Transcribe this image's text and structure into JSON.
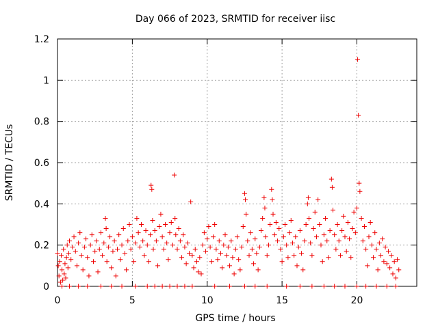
{
  "chart_data": {
    "type": "scatter",
    "title": "Day 066 of 2023, SRMTID for receiver iisc",
    "xlabel": "GPS time / hours",
    "ylabel": "SRMTID / TECUs",
    "xlim": [
      0,
      24
    ],
    "ylim": [
      0,
      1.2
    ],
    "grid": true,
    "x_ticks": [
      0,
      5,
      10,
      15,
      20
    ],
    "x_tick_labels": [
      "0",
      "5",
      "10",
      "15",
      "20"
    ],
    "y_ticks": [
      0,
      0.2,
      0.4,
      0.6,
      0.8,
      1,
      1.2
    ],
    "y_tick_labels": [
      "0",
      "0.2",
      "0.4",
      "0.6",
      "0.8",
      "1",
      "1.2"
    ],
    "marker": "+",
    "color": "#ee0000",
    "series": [
      {
        "name": "iisc",
        "points": [
          [
            0.0,
            0.16
          ],
          [
            0.05,
            0.1
          ],
          [
            0.1,
            0.05
          ],
          [
            0.15,
            0.12
          ],
          [
            0.2,
            0.02
          ],
          [
            0.25,
            0.15
          ],
          [
            0.3,
            0.08
          ],
          [
            0.35,
            0.03
          ],
          [
            0.4,
            0.18
          ],
          [
            0.45,
            0.06
          ],
          [
            0.5,
            0.11
          ],
          [
            0.55,
            0.04
          ],
          [
            0.6,
            0.14
          ],
          [
            0.65,
            0.2
          ],
          [
            0.7,
            0.09
          ],
          [
            0.75,
            0.16
          ],
          [
            0.8,
            0.22
          ],
          [
            0.9,
            0.13
          ],
          [
            1.0,
            0.19
          ],
          [
            1.1,
            0.24
          ],
          [
            1.2,
            0.17
          ],
          [
            1.3,
            0.1
          ],
          [
            1.4,
            0.21
          ],
          [
            1.5,
            0.26
          ],
          [
            1.6,
            0.15
          ],
          [
            1.7,
            0.08
          ],
          [
            1.8,
            0.19
          ],
          [
            1.9,
            0.23
          ],
          [
            2.0,
            0.14
          ],
          [
            2.1,
            0.05
          ],
          [
            2.2,
            0.2
          ],
          [
            2.3,
            0.25
          ],
          [
            2.4,
            0.12
          ],
          [
            2.5,
            0.17
          ],
          [
            2.6,
            0.22
          ],
          [
            2.7,
            0.07
          ],
          [
            2.8,
            0.18
          ],
          [
            2.9,
            0.26
          ],
          [
            3.0,
            0.15
          ],
          [
            3.1,
            0.21
          ],
          [
            3.2,
            0.33
          ],
          [
            3.25,
            0.28
          ],
          [
            3.3,
            0.12
          ],
          [
            3.4,
            0.19
          ],
          [
            3.5,
            0.24
          ],
          [
            3.6,
            0.09
          ],
          [
            3.7,
            0.17
          ],
          [
            3.8,
            0.22
          ],
          [
            3.9,
            0.05
          ],
          [
            4.0,
            0.18
          ],
          [
            4.1,
            0.25
          ],
          [
            4.2,
            0.13
          ],
          [
            4.3,
            0.2
          ],
          [
            4.4,
            0.28
          ],
          [
            4.5,
            0.16
          ],
          [
            4.6,
            0.08
          ],
          [
            4.7,
            0.22
          ],
          [
            4.8,
            0.3
          ],
          [
            4.9,
            0.18
          ],
          [
            5.0,
            0.24
          ],
          [
            5.1,
            0.12
          ],
          [
            5.2,
            0.21
          ],
          [
            5.3,
            0.33
          ],
          [
            5.4,
            0.26
          ],
          [
            5.5,
            0.19
          ],
          [
            5.6,
            0.3
          ],
          [
            5.7,
            0.22
          ],
          [
            5.8,
            0.15
          ],
          [
            5.9,
            0.27
          ],
          [
            6.0,
            0.2
          ],
          [
            6.1,
            0.12
          ],
          [
            6.2,
            0.25
          ],
          [
            6.25,
            0.49
          ],
          [
            6.3,
            0.47
          ],
          [
            6.35,
            0.32
          ],
          [
            6.4,
            0.18
          ],
          [
            6.5,
            0.27
          ],
          [
            6.6,
            0.22
          ],
          [
            6.7,
            0.1
          ],
          [
            6.8,
            0.29
          ],
          [
            6.9,
            0.35
          ],
          [
            7.0,
            0.24
          ],
          [
            7.1,
            0.18
          ],
          [
            7.2,
            0.3
          ],
          [
            7.3,
            0.21
          ],
          [
            7.4,
            0.13
          ],
          [
            7.5,
            0.26
          ],
          [
            7.6,
            0.31
          ],
          [
            7.7,
            0.2
          ],
          [
            7.8,
            0.54
          ],
          [
            7.85,
            0.33
          ],
          [
            7.9,
            0.25
          ],
          [
            8.0,
            0.18
          ],
          [
            8.1,
            0.28
          ],
          [
            8.2,
            0.22
          ],
          [
            8.3,
            0.14
          ],
          [
            8.4,
            0.25
          ],
          [
            8.5,
            0.19
          ],
          [
            8.6,
            0.11
          ],
          [
            8.7,
            0.21
          ],
          [
            8.8,
            0.16
          ],
          [
            8.9,
            0.41
          ],
          [
            9.0,
            0.15
          ],
          [
            9.1,
            0.09
          ],
          [
            9.2,
            0.18
          ],
          [
            9.3,
            0.12
          ],
          [
            9.4,
            0.07
          ],
          [
            9.5,
            0.14
          ],
          [
            9.6,
            0.06
          ],
          [
            9.7,
            0.2
          ],
          [
            9.8,
            0.26
          ],
          [
            9.9,
            0.17
          ],
          [
            10.0,
            0.23
          ],
          [
            10.1,
            0.29
          ],
          [
            10.2,
            0.19
          ],
          [
            10.3,
            0.12
          ],
          [
            10.4,
            0.24
          ],
          [
            10.5,
            0.3
          ],
          [
            10.6,
            0.18
          ],
          [
            10.7,
            0.13
          ],
          [
            10.8,
            0.22
          ],
          [
            10.9,
            0.16
          ],
          [
            11.0,
            0.09
          ],
          [
            11.1,
            0.2
          ],
          [
            11.2,
            0.25
          ],
          [
            11.3,
            0.15
          ],
          [
            11.4,
            0.19
          ],
          [
            11.5,
            0.1
          ],
          [
            11.6,
            0.22
          ],
          [
            11.7,
            0.14
          ],
          [
            11.8,
            0.06
          ],
          [
            11.9,
            0.18
          ],
          [
            12.0,
            0.24
          ],
          [
            12.1,
            0.13
          ],
          [
            12.2,
            0.08
          ],
          [
            12.3,
            0.19
          ],
          [
            12.4,
            0.29
          ],
          [
            12.5,
            0.45
          ],
          [
            12.55,
            0.42
          ],
          [
            12.6,
            0.35
          ],
          [
            12.7,
            0.22
          ],
          [
            12.8,
            0.15
          ],
          [
            12.9,
            0.26
          ],
          [
            13.0,
            0.18
          ],
          [
            13.1,
            0.11
          ],
          [
            13.2,
            0.23
          ],
          [
            13.3,
            0.16
          ],
          [
            13.4,
            0.08
          ],
          [
            13.5,
            0.19
          ],
          [
            13.6,
            0.27
          ],
          [
            13.7,
            0.33
          ],
          [
            13.8,
            0.43
          ],
          [
            13.85,
            0.38
          ],
          [
            13.9,
            0.24
          ],
          [
            14.0,
            0.15
          ],
          [
            14.1,
            0.2
          ],
          [
            14.2,
            0.3
          ],
          [
            14.3,
            0.47
          ],
          [
            14.35,
            0.42
          ],
          [
            14.4,
            0.35
          ],
          [
            14.5,
            0.25
          ],
          [
            14.6,
            0.31
          ],
          [
            14.7,
            0.22
          ],
          [
            14.8,
            0.28
          ],
          [
            14.9,
            0.18
          ],
          [
            15.0,
            0.12
          ],
          [
            15.1,
            0.24
          ],
          [
            15.2,
            0.3
          ],
          [
            15.3,
            0.2
          ],
          [
            15.4,
            0.14
          ],
          [
            15.5,
            0.26
          ],
          [
            15.6,
            0.32
          ],
          [
            15.7,
            0.21
          ],
          [
            15.8,
            0.15
          ],
          [
            15.9,
            0.24
          ],
          [
            16.0,
            0.1
          ],
          [
            16.1,
            0.19
          ],
          [
            16.2,
            0.27
          ],
          [
            16.3,
            0.16
          ],
          [
            16.4,
            0.08
          ],
          [
            16.5,
            0.22
          ],
          [
            16.6,
            0.3
          ],
          [
            16.7,
            0.4
          ],
          [
            16.75,
            0.43
          ],
          [
            16.8,
            0.33
          ],
          [
            16.9,
            0.21
          ],
          [
            17.0,
            0.15
          ],
          [
            17.1,
            0.28
          ],
          [
            17.2,
            0.36
          ],
          [
            17.3,
            0.24
          ],
          [
            17.4,
            0.42
          ],
          [
            17.5,
            0.3
          ],
          [
            17.6,
            0.2
          ],
          [
            17.7,
            0.12
          ],
          [
            17.8,
            0.25
          ],
          [
            17.9,
            0.33
          ],
          [
            18.0,
            0.22
          ],
          [
            18.1,
            0.14
          ],
          [
            18.2,
            0.27
          ],
          [
            18.3,
            0.52
          ],
          [
            18.35,
            0.48
          ],
          [
            18.4,
            0.37
          ],
          [
            18.5,
            0.25
          ],
          [
            18.6,
            0.18
          ],
          [
            18.7,
            0.3
          ],
          [
            18.8,
            0.22
          ],
          [
            18.9,
            0.15
          ],
          [
            19.0,
            0.27
          ],
          [
            19.1,
            0.34
          ],
          [
            19.2,
            0.24
          ],
          [
            19.3,
            0.17
          ],
          [
            19.4,
            0.31
          ],
          [
            19.5,
            0.23
          ],
          [
            19.6,
            0.14
          ],
          [
            19.7,
            0.28
          ],
          [
            19.8,
            0.36
          ],
          [
            19.9,
            0.26
          ],
          [
            20.0,
            0.38
          ],
          [
            20.05,
            1.1
          ],
          [
            20.1,
            0.83
          ],
          [
            20.15,
            0.5
          ],
          [
            20.2,
            0.46
          ],
          [
            20.3,
            0.33
          ],
          [
            20.4,
            0.22
          ],
          [
            20.5,
            0.29
          ],
          [
            20.6,
            0.18
          ],
          [
            20.7,
            0.1
          ],
          [
            20.8,
            0.24
          ],
          [
            20.9,
            0.31
          ],
          [
            21.0,
            0.2
          ],
          [
            21.1,
            0.14
          ],
          [
            21.2,
            0.26
          ],
          [
            21.3,
            0.18
          ],
          [
            21.4,
            0.08
          ],
          [
            21.5,
            0.21
          ],
          [
            21.6,
            0.15
          ],
          [
            21.7,
            0.23
          ],
          [
            21.8,
            0.12
          ],
          [
            21.9,
            0.19
          ],
          [
            22.0,
            0.11
          ],
          [
            22.1,
            0.17
          ],
          [
            22.2,
            0.09
          ],
          [
            22.3,
            0.15
          ],
          [
            22.4,
            0.06
          ],
          [
            22.5,
            0.12
          ],
          [
            22.6,
            0.04
          ],
          [
            22.7,
            0.13
          ],
          [
            22.8,
            0.08
          ],
          [
            0.3,
            0.0
          ],
          [
            0.8,
            0.0
          ],
          [
            1.4,
            0.0
          ],
          [
            2.0,
            0.0
          ],
          [
            2.9,
            0.0
          ],
          [
            3.6,
            0.0
          ],
          [
            4.3,
            0.0
          ],
          [
            5.2,
            0.0
          ],
          [
            6.0,
            0.0
          ],
          [
            6.5,
            0.0
          ],
          [
            7.0,
            0.0
          ],
          [
            7.5,
            0.0
          ],
          [
            8.0,
            0.0
          ],
          [
            8.5,
            0.0
          ],
          [
            9.0,
            0.0
          ],
          [
            10.5,
            0.0
          ],
          [
            11.5,
            0.0
          ],
          [
            12.5,
            0.0
          ],
          [
            13.2,
            0.0
          ],
          [
            14.0,
            0.0
          ],
          [
            15.3,
            0.0
          ],
          [
            16.2,
            0.0
          ],
          [
            17.0,
            0.0
          ],
          [
            17.8,
            0.0
          ],
          [
            18.5,
            0.0
          ],
          [
            19.2,
            0.0
          ],
          [
            20.0,
            0.0
          ],
          [
            20.6,
            0.0
          ],
          [
            21.3,
            0.0
          ],
          [
            22.0,
            0.0
          ],
          [
            22.6,
            0.0
          ]
        ]
      }
    ]
  }
}
